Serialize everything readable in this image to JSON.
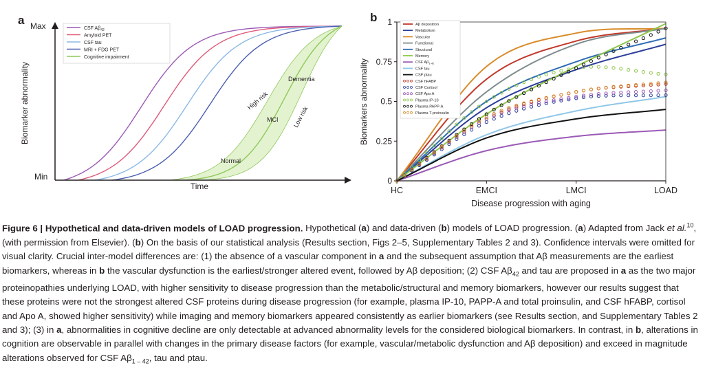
{
  "panel_a": {
    "label": "a",
    "y_max": "Max",
    "y_min": "Min",
    "y_axis_label": "Biomarker abnormality",
    "x_axis_label": "Time",
    "legend": [
      {
        "text": "CSF Aβ",
        "sub": "42",
        "color": "#9b59b6"
      },
      {
        "text": "Amyloid PET",
        "sub": "",
        "color": "#e05a78"
      },
      {
        "text": "CSF tau",
        "sub": "",
        "color": "#8bb8e6"
      },
      {
        "text": "MRI + FDG PET",
        "sub": "",
        "color": "#4b5fb0"
      },
      {
        "text": "Cognitive impairment",
        "sub": "",
        "color": "#8ec95a"
      }
    ],
    "region_labels": {
      "dementia": "Dementia",
      "mci": "MCI",
      "normal": "Normal",
      "high_risk": "High risk",
      "low_risk": "Low risk"
    },
    "fill_color": "#e3f2cf"
  },
  "panel_b": {
    "label": "b",
    "y_ticks": [
      "0",
      "0.25",
      "0.5",
      "0.75",
      "1"
    ],
    "x_ticks": [
      "HC",
      "EMCI",
      "LMCI",
      "LOAD"
    ],
    "y_axis_label": "Biomarkers abnormality",
    "x_axis_label": "Disease progression with aging"
  },
  "chart_data": {
    "type": "line",
    "x": [
      "HC",
      "EMCI",
      "LMCI",
      "LOAD"
    ],
    "ylim": [
      0,
      1
    ],
    "ylabel": "Biomarkers abnormality",
    "xlabel": "Disease progression with aging",
    "grid": false,
    "legend_position": "top-left",
    "series": [
      {
        "name": "Aβ deposition",
        "style": "solid",
        "color": "#c0392b",
        "values": [
          0,
          0.64,
          0.88,
          0.96
        ]
      },
      {
        "name": "Metabolism",
        "style": "solid",
        "color": "#2c3e9a",
        "values": [
          0,
          0.46,
          0.7,
          0.86
        ]
      },
      {
        "name": "Vascular",
        "style": "solid",
        "color": "#d98c2b",
        "values": [
          0,
          0.72,
          0.93,
          0.96
        ]
      },
      {
        "name": "Functional",
        "style": "solid",
        "color": "#7f8c8d",
        "values": [
          0,
          0.56,
          0.86,
          0.96
        ]
      },
      {
        "name": "Structural",
        "style": "solid",
        "color": "#2f6db5",
        "values": [
          0,
          0.5,
          0.75,
          0.9
        ]
      },
      {
        "name": "Memory",
        "style": "solid",
        "color": "#8ec64a",
        "values": [
          0,
          0.42,
          0.72,
          0.99
        ]
      },
      {
        "name": "CSF Aβ",
        "name_sub": "1-42",
        "style": "solid",
        "color": "#9b59b6",
        "values": [
          0,
          0.19,
          0.28,
          0.32
        ]
      },
      {
        "name": "CSF tau",
        "style": "solid",
        "color": "#8fc7e8",
        "values": [
          0,
          0.29,
          0.44,
          0.53
        ]
      },
      {
        "name": "CSF ptau",
        "style": "solid",
        "color": "#111111",
        "values": [
          0,
          0.27,
          0.39,
          0.45
        ]
      },
      {
        "name": "CSF hFABP",
        "style": "dotted",
        "color": "#c0392b",
        "values": [
          0,
          0.39,
          0.56,
          0.61
        ]
      },
      {
        "name": "CSF Cortisol",
        "style": "dotted",
        "color": "#2c3e9a",
        "values": [
          0,
          0.37,
          0.52,
          0.54
        ]
      },
      {
        "name": "CSF Apo A",
        "style": "dotted",
        "color": "#9b59b6",
        "values": [
          0,
          0.39,
          0.53,
          0.57
        ]
      },
      {
        "name": "Plasma IP-10",
        "style": "dotted",
        "color": "#8ec64a",
        "values": [
          0,
          0.5,
          0.71,
          0.67
        ]
      },
      {
        "name": "Plasma PAPP-A",
        "style": "dotted",
        "color": "#111111",
        "values": [
          0,
          0.42,
          0.71,
          0.96
        ]
      },
      {
        "name": "Plasma T-proinsulin",
        "style": "dotted",
        "color": "#d98c2b",
        "values": [
          0,
          0.4,
          0.56,
          0.62
        ]
      }
    ]
  },
  "caption": {
    "title": "Figure 6 | Hypothetical and data-driven  models of LOAD progression.",
    "body": [
      {
        "t": " Hypothetical ("
      },
      {
        "t": "a",
        "b": true
      },
      {
        "t": ") and data-driven ("
      },
      {
        "t": "b",
        "b": true
      },
      {
        "t": ") models of LOAD progression. ("
      },
      {
        "t": "a",
        "b": true
      },
      {
        "t": ") Adapted from Jack "
      },
      {
        "t": "et al.",
        "i": true
      },
      {
        "t": "10",
        "sup": true
      },
      {
        "t": ", (with permission from Elsevier). ("
      },
      {
        "t": "b",
        "b": true
      },
      {
        "t": ") On the basis of our statistical analysis (Results section, Figs 2–5, Supplementary Tables 2 and 3). Confidence intervals were omitted for visual clarity. Crucial inter-model differences are: (1) the absence of a vascular component in "
      },
      {
        "t": "a",
        "b": true
      },
      {
        "t": " and the subsequent assumption that Aβ measurements are the earliest biomarkers, whereas in "
      },
      {
        "t": "b",
        "b": true
      },
      {
        "t": " the vascular dysfunction is the earliest/stronger altered event, followed by Aβ deposition; (2) CSF Aβ"
      },
      {
        "t": "42",
        "sub": true
      },
      {
        "t": " and tau are proposed in "
      },
      {
        "t": "a",
        "b": true
      },
      {
        "t": " as the two major proteinopathies underlying LOAD, with higher sensitivity to disease progression than the metabolic/structural and memory biomarkers, however our results suggest that these proteins were not the strongest altered CSF proteins during disease progression (for example, plasma IP-10, PAPP-A and total proinsulin, and CSF hFABP, cortisol and Apo A, showed higher sensitivity) while imaging and memory biomarkers appeared consistently as earlier biomarkers (see Results section, and Supplementary Tables 2 and 3); (3) in "
      },
      {
        "t": "a",
        "b": true
      },
      {
        "t": ", abnormalities in cognitive decline are only detectable at advanced abnormality levels for the considered biological biomarkers. In contrast, in "
      },
      {
        "t": "b",
        "b": true
      },
      {
        "t": ", alterations in cognition are observable in parallel with changes in the primary disease factors (for example, vascular/metabolic dysfunction and Aβ deposition) and exceed in magnitude alterations observed for CSF Aβ"
      },
      {
        "t": "1 – 42",
        "sub": true
      },
      {
        "t": ", tau and ptau."
      }
    ]
  }
}
